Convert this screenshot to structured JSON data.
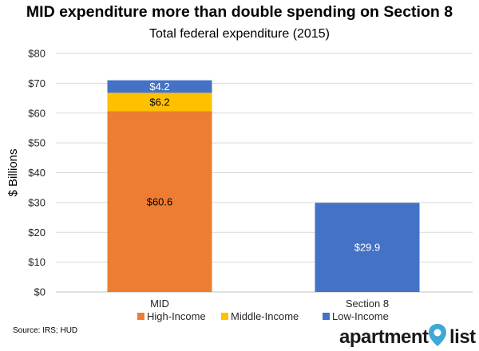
{
  "header": {
    "title": "MID expenditure more than double spending on Section 8",
    "subtitle": "Total federal expenditure (2015)"
  },
  "source": "Source: IRS; HUD",
  "brand": {
    "left": "apartment",
    "right": "list",
    "pin_color": "#3fa9d6"
  },
  "chart_data": {
    "type": "bar",
    "stacked": true,
    "title": "MID expenditure more than double spending on Section 8",
    "subtitle": "Total federal expenditure (2015)",
    "xlabel": "",
    "ylabel": "$ Billions",
    "categories": [
      "MID",
      "Section 8"
    ],
    "ylim": [
      0,
      80
    ],
    "yticks": [
      0,
      10,
      20,
      30,
      40,
      50,
      60,
      70,
      80
    ],
    "ytick_labels": [
      "$0",
      "$10",
      "$20",
      "$30",
      "$40",
      "$50",
      "$60",
      "$70",
      "$80"
    ],
    "grid": true,
    "legend_position": "bottom",
    "series": [
      {
        "name": "High-Income",
        "color": "#ed7d31",
        "values": [
          60.6,
          null
        ],
        "labels": [
          "$60.6",
          null
        ],
        "label_color": "#000000"
      },
      {
        "name": "Middle-Income",
        "color": "#ffc000",
        "values": [
          6.2,
          null
        ],
        "labels": [
          "$6.2",
          null
        ],
        "label_color": "#000000"
      },
      {
        "name": "Low-Income",
        "color": "#4472c4",
        "values": [
          4.2,
          29.9
        ],
        "labels": [
          "$4.2",
          "$29.9"
        ],
        "label_color": "#ffffff"
      }
    ]
  }
}
